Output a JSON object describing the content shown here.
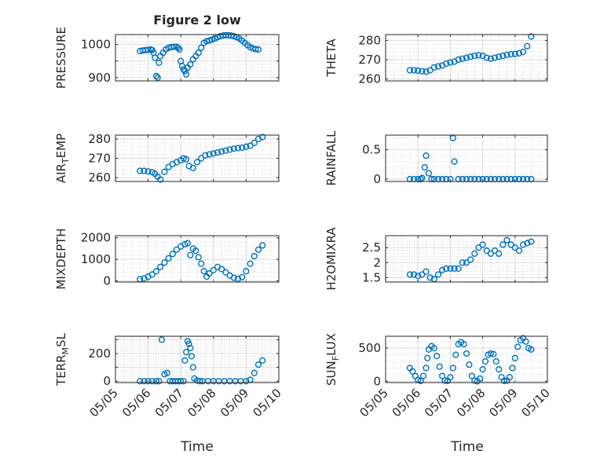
{
  "chart_data": [
    {
      "type": "scatter",
      "title": "Figure 2 low",
      "ylabel": {
        "main": "PRESSURE"
      },
      "xlim": [
        "05/05",
        "05/10"
      ],
      "ylim": [
        890,
        1030
      ],
      "yticks": [
        900,
        950,
        1000
      ],
      "yticklabels": [
        "900",
        "",
        "1000"
      ],
      "xticks": [
        "05/05",
        "05/06",
        "05/07",
        "05/08",
        "05/09",
        "05/10"
      ],
      "show_xticklabels": false,
      "x": [
        "05/05 18:00",
        "05/05 20:00",
        "05/05 22:00",
        "05/06 00:00",
        "05/06 02:00",
        "05/06 03:00",
        "05/06 04:00",
        "05/06 05:00",
        "05/06 06:00",
        "05/06 07:00",
        "05/06 08:00",
        "05/06 09:00",
        "05/06 11:00",
        "05/06 13:00",
        "05/06 15:00",
        "05/06 17:00",
        "05/06 19:00",
        "05/06 21:00",
        "05/06 22:00",
        "05/06 23:00",
        "05/07 00:00",
        "05/07 01:00",
        "05/07 02:00",
        "05/07 03:00",
        "05/07 04:00",
        "05/07 05:00",
        "05/07 07:00",
        "05/07 09:00",
        "05/07 11:00",
        "05/07 13:00",
        "05/07 15:00",
        "05/07 17:00",
        "05/07 19:00",
        "05/07 21:00",
        "05/07 23:00",
        "05/08 01:00",
        "05/08 03:00",
        "05/08 05:00",
        "05/08 07:00",
        "05/08 09:00",
        "05/08 11:00",
        "05/08 13:00",
        "05/08 15:00",
        "05/08 17:00",
        "05/08 19:00",
        "05/08 21:00",
        "05/08 23:00",
        "05/09 01:00",
        "05/09 03:00",
        "05/09 05:00",
        "05/09 07:00",
        "05/09 09:00"
      ],
      "y": [
        980,
        982,
        983,
        984,
        985,
        983,
        975,
        960,
        905,
        900,
        945,
        965,
        975,
        985,
        990,
        992,
        993,
        993,
        990,
        985,
        950,
        935,
        925,
        920,
        910,
        930,
        940,
        955,
        965,
        975,
        990,
        1005,
        1010,
        1012,
        1015,
        1018,
        1022,
        1025,
        1027,
        1028,
        1028,
        1027,
        1025,
        1022,
        1018,
        1012,
        1005,
        998,
        992,
        988,
        986,
        985
      ]
    },
    {
      "type": "scatter",
      "ylabel": {
        "main": "THETA"
      },
      "xlim": [
        "05/05",
        "05/10"
      ],
      "ylim": [
        259,
        283
      ],
      "yticks": [
        260,
        270,
        280
      ],
      "yticklabels": [
        "260",
        "270",
        "280"
      ],
      "xticks": [
        "05/05",
        "05/06",
        "05/07",
        "05/08",
        "05/09",
        "05/10"
      ],
      "show_xticklabels": false,
      "x": [
        "05/05 18:00",
        "05/05 21:00",
        "05/06 00:00",
        "05/06 03:00",
        "05/06 06:00",
        "05/06 09:00",
        "05/06 12:00",
        "05/06 15:00",
        "05/06 18:00",
        "05/06 21:00",
        "05/07 00:00",
        "05/07 03:00",
        "05/07 06:00",
        "05/07 09:00",
        "05/07 12:00",
        "05/07 15:00",
        "05/07 18:00",
        "05/07 21:00",
        "05/08 00:00",
        "05/08 03:00",
        "05/08 06:00",
        "05/08 09:00",
        "05/08 12:00",
        "05/08 15:00",
        "05/08 18:00",
        "05/08 21:00",
        "05/09 00:00",
        "05/09 03:00",
        "05/09 06:00",
        "05/09 09:00",
        "05/09 12:00"
      ],
      "y": [
        264.5,
        264.5,
        264.3,
        264,
        263.8,
        264.5,
        266,
        266.5,
        267,
        268,
        268.5,
        269,
        270,
        270.5,
        271,
        271.5,
        272,
        272.3,
        272,
        271,
        270.5,
        271,
        271.5,
        272,
        272.5,
        272.8,
        273,
        273.3,
        274,
        277,
        282
      ]
    },
    {
      "type": "scatter",
      "ylabel": {
        "main": "AIR",
        "sub": "T",
        "rest": "EMP"
      },
      "xlim": [
        "05/05",
        "05/10"
      ],
      "ylim": [
        258,
        282
      ],
      "yticks": [
        260,
        270,
        280
      ],
      "yticklabels": [
        "260",
        "270",
        "280"
      ],
      "xticks": [
        "05/05",
        "05/06",
        "05/07",
        "05/08",
        "05/09",
        "05/10"
      ],
      "show_xticklabels": false,
      "x": [
        "05/05 18:00",
        "05/05 21:00",
        "05/06 00:00",
        "05/06 03:00",
        "05/06 05:00",
        "05/06 07:00",
        "05/06 09:00",
        "05/06 12:00",
        "05/06 15:00",
        "05/06 18:00",
        "05/06 21:00",
        "05/07 00:00",
        "05/07 02:00",
        "05/07 04:00",
        "05/07 06:00",
        "05/07 09:00",
        "05/07 12:00",
        "05/07 15:00",
        "05/07 18:00",
        "05/07 21:00",
        "05/08 00:00",
        "05/08 03:00",
        "05/08 06:00",
        "05/08 09:00",
        "05/08 12:00",
        "05/08 15:00",
        "05/08 18:00",
        "05/08 21:00",
        "05/09 00:00",
        "05/09 03:00",
        "05/09 06:00",
        "05/09 09:00",
        "05/09 12:00"
      ],
      "y": [
        263.5,
        263.5,
        263.2,
        262.8,
        262,
        260.5,
        259,
        263,
        265.5,
        267,
        268,
        269,
        270,
        269.5,
        266,
        265,
        268,
        270,
        271.5,
        272,
        272.5,
        273,
        273.5,
        274,
        274.5,
        275,
        275.3,
        275.5,
        276,
        276.5,
        278,
        280,
        281
      ]
    },
    {
      "type": "scatter",
      "ylabel": {
        "main": "RAINFALL"
      },
      "xlim": [
        "05/05",
        "05/10"
      ],
      "ylim": [
        -0.04,
        0.75
      ],
      "yticks": [
        0,
        0.5
      ],
      "yticklabels": [
        "0",
        "0.5"
      ],
      "xticks": [
        "05/05",
        "05/06",
        "05/07",
        "05/08",
        "05/09",
        "05/10"
      ],
      "show_xticklabels": false,
      "x": [
        "05/05 18:00",
        "05/05 21:00",
        "05/06 00:00",
        "05/06 02:00",
        "05/06 03:00",
        "05/06 05:00",
        "05/06 06:00",
        "05/06 08:00",
        "05/06 10:00",
        "05/06 12:00",
        "05/06 15:00",
        "05/06 18:00",
        "05/06 21:00",
        "05/07 00:00",
        "05/07 02:00",
        "05/07 03:00",
        "05/07 06:00",
        "05/07 09:00",
        "05/07 12:00",
        "05/07 15:00",
        "05/07 18:00",
        "05/07 21:00",
        "05/08 00:00",
        "05/08 03:00",
        "05/08 06:00",
        "05/08 09:00",
        "05/08 12:00",
        "05/08 15:00",
        "05/08 18:00",
        "05/08 21:00",
        "05/09 00:00",
        "05/09 03:00",
        "05/09 06:00",
        "05/09 09:00",
        "05/09 12:00"
      ],
      "y": [
        0,
        0,
        0,
        0,
        0.02,
        0.2,
        0.4,
        0.1,
        0,
        0,
        0,
        0,
        0,
        0,
        0.7,
        0.3,
        0,
        0,
        0,
        0,
        0,
        0,
        0,
        0,
        0,
        0,
        0,
        0,
        0,
        0,
        0,
        0,
        0,
        0,
        0
      ]
    },
    {
      "type": "scatter",
      "ylabel": {
        "main": "MIXDEPTH"
      },
      "xlim": [
        "05/05",
        "05/10"
      ],
      "ylim": [
        -50,
        2100
      ],
      "yticks": [
        0,
        1000,
        2000
      ],
      "yticklabels": [
        "0",
        "1000",
        "2000"
      ],
      "xticks": [
        "05/05",
        "05/06",
        "05/07",
        "05/08",
        "05/09",
        "05/10"
      ],
      "show_xticklabels": false,
      "x": [
        "05/05 18:00",
        "05/05 21:00",
        "05/06 00:00",
        "05/06 03:00",
        "05/06 06:00",
        "05/06 09:00",
        "05/06 12:00",
        "05/06 15:00",
        "05/06 18:00",
        "05/06 21:00",
        "05/07 00:00",
        "05/07 03:00",
        "05/07 05:00",
        "05/07 07:00",
        "05/07 09:00",
        "05/07 11:00",
        "05/07 13:00",
        "05/07 15:00",
        "05/07 17:00",
        "05/07 19:00",
        "05/07 21:00",
        "05/08 00:00",
        "05/08 03:00",
        "05/08 06:00",
        "05/08 09:00",
        "05/08 12:00",
        "05/08 15:00",
        "05/08 18:00",
        "05/08 21:00",
        "05/09 00:00",
        "05/09 03:00",
        "05/09 06:00",
        "05/09 09:00",
        "05/09 12:00"
      ],
      "y": [
        80,
        120,
        200,
        300,
        450,
        650,
        850,
        1050,
        1250,
        1450,
        1600,
        1700,
        1750,
        1200,
        1500,
        1400,
        1100,
        800,
        450,
        200,
        350,
        500,
        650,
        550,
        400,
        250,
        150,
        100,
        180,
        450,
        800,
        1150,
        1450,
        1650
      ]
    },
    {
      "type": "scatter",
      "ylabel": {
        "main": "H2OMIXRA"
      },
      "xlim": [
        "05/05",
        "05/10"
      ],
      "ylim": [
        1.35,
        2.9
      ],
      "yticks": [
        1.5,
        2,
        2.5
      ],
      "yticklabels": [
        "1.5",
        "2",
        "2.5"
      ],
      "xticks": [
        "05/05",
        "05/06",
        "05/07",
        "05/08",
        "05/09",
        "05/10"
      ],
      "show_xticklabels": false,
      "x": [
        "05/05 18:00",
        "05/05 21:00",
        "05/06 00:00",
        "05/06 03:00",
        "05/06 06:00",
        "05/06 09:00",
        "05/06 12:00",
        "05/06 15:00",
        "05/06 18:00",
        "05/06 21:00",
        "05/07 00:00",
        "05/07 03:00",
        "05/07 06:00",
        "05/07 09:00",
        "05/07 12:00",
        "05/07 15:00",
        "05/07 18:00",
        "05/07 21:00",
        "05/08 00:00",
        "05/08 03:00",
        "05/08 06:00",
        "05/08 09:00",
        "05/08 12:00",
        "05/08 15:00",
        "05/08 18:00",
        "05/08 21:00",
        "05/09 00:00",
        "05/09 03:00",
        "05/09 06:00",
        "05/09 09:00",
        "05/09 12:00"
      ],
      "y": [
        1.6,
        1.6,
        1.55,
        1.6,
        1.7,
        1.5,
        1.45,
        1.6,
        1.75,
        1.8,
        1.8,
        1.8,
        1.8,
        2.0,
        2.0,
        2.1,
        2.3,
        2.5,
        2.6,
        2.4,
        2.3,
        2.4,
        2.3,
        2.6,
        2.75,
        2.6,
        2.5,
        2.4,
        2.6,
        2.65,
        2.7
      ]
    },
    {
      "type": "scatter",
      "ylabel": {
        "main": "TERR",
        "sub": "M",
        "rest": "SL"
      },
      "xlim": [
        "05/05",
        "05/10"
      ],
      "ylim": [
        -10,
        325
      ],
      "yticks": [
        0,
        100,
        200,
        300
      ],
      "yticklabels": [
        "0",
        "",
        "200",
        ""
      ],
      "xticks": [
        "05/05",
        "05/06",
        "05/07",
        "05/08",
        "05/09",
        "05/10"
      ],
      "show_xticklabels": true,
      "x": [
        "05/05 18:00",
        "05/05 21:00",
        "05/06 00:00",
        "05/06 03:00",
        "05/06 06:00",
        "05/06 08:00",
        "05/06 10:00",
        "05/06 12:00",
        "05/06 14:00",
        "05/06 16:00",
        "05/06 18:00",
        "05/06 20:00",
        "05/06 22:00",
        "05/07 00:00",
        "05/07 02:00",
        "05/07 03:00",
        "05/07 04:00",
        "05/07 05:00",
        "05/07 06:00",
        "05/07 07:00",
        "05/07 08:00",
        "05/07 09:00",
        "05/07 10:00",
        "05/07 12:00",
        "05/07 14:00",
        "05/07 16:00",
        "05/07 20:00",
        "05/08 00:00",
        "05/08 04:00",
        "05/08 08:00",
        "05/08 12:00",
        "05/08 16:00",
        "05/08 20:00",
        "05/09 00:00",
        "05/09 03:00",
        "05/09 06:00",
        "05/09 09:00",
        "05/09 12:00"
      ],
      "y": [
        0,
        0,
        0,
        0,
        0,
        0,
        300,
        50,
        60,
        0,
        0,
        0,
        0,
        0,
        0,
        150,
        210,
        290,
        270,
        240,
        180,
        100,
        20,
        5,
        0,
        0,
        0,
        0,
        0,
        0,
        0,
        0,
        0,
        0,
        10,
        60,
        120,
        150
      ]
    },
    {
      "type": "scatter",
      "ylabel": {
        "main": "SUN",
        "sub": "F",
        "rest": "LUX"
      },
      "xlim": [
        "05/05",
        "05/10"
      ],
      "ylim": [
        -20,
        680
      ],
      "yticks": [
        0,
        500
      ],
      "yticklabels": [
        "0",
        "500"
      ],
      "xticks": [
        "05/05",
        "05/06",
        "05/07",
        "05/08",
        "05/09",
        "05/10"
      ],
      "show_xticklabels": true,
      "x": [
        "05/05 18:00",
        "05/05 20:00",
        "05/05 22:00",
        "05/06 00:00",
        "05/06 02:00",
        "05/06 04:00",
        "05/06 06:00",
        "05/06 07:00",
        "05/06 08:00",
        "05/06 10:00",
        "05/06 12:00",
        "05/06 14:00",
        "05/06 16:00",
        "05/06 18:00",
        "05/06 20:00",
        "05/06 22:00",
        "05/07 00:00",
        "05/07 02:00",
        "05/07 04:00",
        "05/07 06:00",
        "05/07 08:00",
        "05/07 10:00",
        "05/07 12:00",
        "05/07 14:00",
        "05/07 16:00",
        "05/07 18:00",
        "05/07 20:00",
        "05/07 22:00",
        "05/08 00:00",
        "05/08 02:00",
        "05/08 04:00",
        "05/08 06:00",
        "05/08 08:00",
        "05/08 10:00",
        "05/08 12:00",
        "05/08 14:00",
        "05/08 16:00",
        "05/08 18:00",
        "05/08 20:00",
        "05/08 22:00",
        "05/09 00:00",
        "05/09 02:00",
        "05/09 04:00",
        "05/09 06:00",
        "05/09 08:00",
        "05/09 10:00",
        "05/09 12:00"
      ],
      "y": [
        200,
        150,
        80,
        20,
        5,
        80,
        200,
        350,
        480,
        530,
        500,
        380,
        220,
        80,
        10,
        5,
        60,
        200,
        400,
        560,
        590,
        560,
        420,
        250,
        80,
        10,
        0,
        40,
        180,
        300,
        400,
        420,
        410,
        300,
        180,
        60,
        5,
        10,
        60,
        200,
        350,
        520,
        620,
        650,
        600,
        500,
        480
      ]
    }
  ],
  "figure": {
    "xlabel": "Time"
  },
  "style": {
    "marker_color": "#0072bd",
    "axes_color": "#262626",
    "grid_color": "#dcdcdc"
  }
}
